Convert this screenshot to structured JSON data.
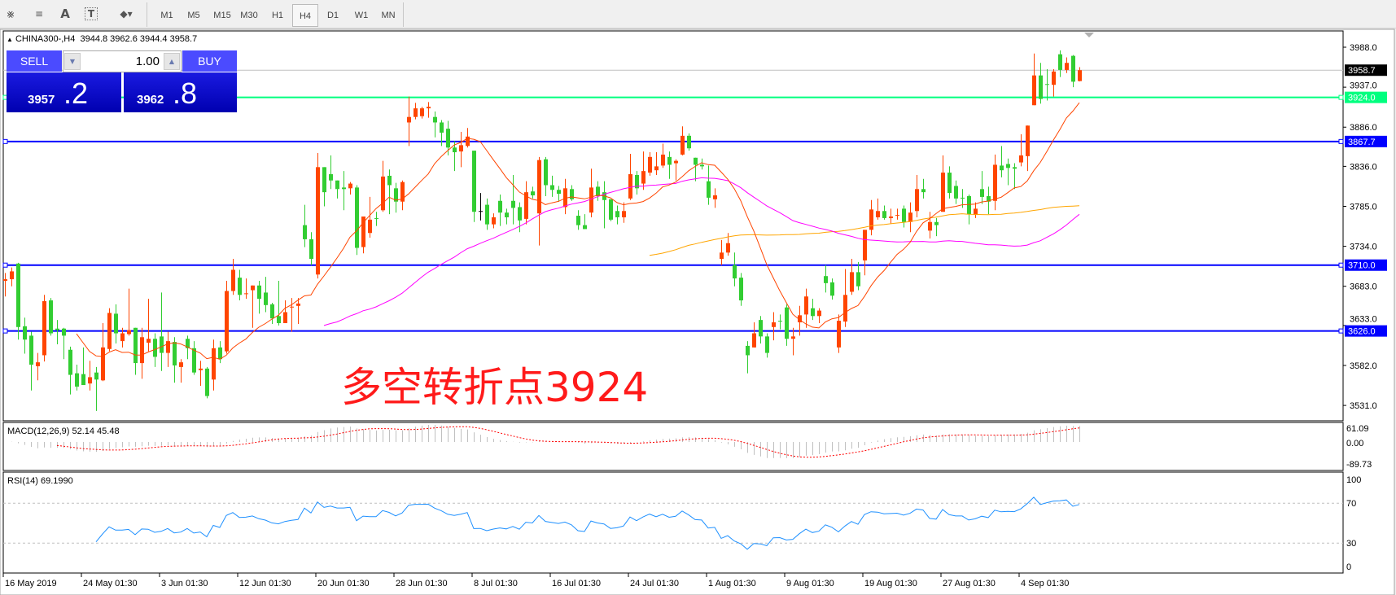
{
  "toolbar": {
    "icons": [
      "elliott-wave-icon",
      "fibonacci-icon",
      "text-icon",
      "text-label-icon",
      "arrows-dropdown-icon"
    ],
    "timeframes": [
      "M1",
      "M5",
      "M15",
      "M30",
      "H1",
      "H4",
      "D1",
      "W1",
      "MN"
    ],
    "selected_timeframe": "H4"
  },
  "chart_header": {
    "symbol": "CHINA300-,H4",
    "ohlc": "3944.8 3962.6 3944.4 3958.7"
  },
  "trade_panel": {
    "sell_label": "SELL",
    "buy_label": "BUY",
    "lot": "1.00",
    "sell_price_main": "3957",
    "sell_price_frac": ".2",
    "buy_price_main": "3962",
    "buy_price_frac": ".8"
  },
  "annotation": "多空转折点3924",
  "colors": {
    "bull": "#ff4500",
    "bear": "#32cd32",
    "ma_fast": "#ff4500",
    "ma_mid": "#ff00ff",
    "ma_slow": "#ffa500",
    "support_resistance": "#0000ff",
    "pivot": "#00ff7f",
    "bid_line": "#c0c0c0",
    "rsi": "#1e90ff",
    "macd_hist": "#c0c0c0",
    "macd_signal": "#ff0000"
  },
  "chart_data": {
    "type": "candlestick",
    "symbol": "CHINA300-",
    "timeframe": "H4",
    "ylim": [
      3520,
      3995
    ],
    "y_ticks": [
      "3988.0",
      "3937.0",
      "3886.0",
      "3836.0",
      "3785.0",
      "3734.0",
      "3683.0",
      "3633.0",
      "3582.0",
      "3531.0"
    ],
    "x_labels": [
      "16 May 2019",
      "24 May 01:30",
      "3 Jun 01:30",
      "12 Jun 01:30",
      "20 Jun 01:30",
      "28 Jun 01:30",
      "8 Jul 01:30",
      "16 Jul 01:30",
      "24 Jul 01:30",
      "1 Aug 01:30",
      "9 Aug 01:30",
      "19 Aug 01:30",
      "27 Aug 01:30",
      "4 Sep 01:30"
    ],
    "x_label_every_bars": 12,
    "bid": {
      "value": 3958.7,
      "label": "3958.7"
    },
    "levels": [
      {
        "value": 3924.0,
        "label": "3924.0",
        "kind": "pivot"
      },
      {
        "value": 3867.7,
        "label": "3867.7",
        "kind": "support_resistance"
      },
      {
        "value": 3710.0,
        "label": "3710.0",
        "kind": "support_resistance"
      },
      {
        "value": 3626.0,
        "label": "3626.0",
        "kind": "support_resistance"
      }
    ],
    "ohlc": [
      [
        3690,
        3700,
        3670,
        3692
      ],
      [
        3692,
        3707,
        3683,
        3702
      ],
      [
        3712,
        3713,
        3615,
        3631
      ],
      [
        3632,
        3643,
        3597,
        3615
      ],
      [
        3620,
        3625,
        3550,
        3583
      ],
      [
        3581,
        3598,
        3563,
        3586
      ],
      [
        3595,
        3672,
        3587,
        3664
      ],
      [
        3665,
        3668,
        3620,
        3623
      ],
      [
        3629,
        3640,
        3609,
        3627
      ],
      [
        3629,
        3630,
        3590,
        3620
      ],
      [
        3602,
        3606,
        3545,
        3570
      ],
      [
        3572,
        3583,
        3550,
        3555
      ],
      [
        3571,
        3605,
        3557,
        3557
      ],
      [
        3559,
        3588,
        3550,
        3567
      ],
      [
        3573,
        3580,
        3524,
        3564
      ],
      [
        3563,
        3636,
        3562,
        3605
      ],
      [
        3603,
        3655,
        3600,
        3649
      ],
      [
        3648,
        3660,
        3610,
        3623
      ],
      [
        3613,
        3630,
        3605,
        3623
      ],
      [
        3622,
        3680,
        3620,
        3627
      ],
      [
        3630,
        3630,
        3570,
        3585
      ],
      [
        3585,
        3630,
        3565,
        3618
      ],
      [
        3611,
        3667,
        3600,
        3616
      ],
      [
        3616,
        3623,
        3580,
        3593
      ],
      [
        3619,
        3675,
        3575,
        3598
      ],
      [
        3598,
        3625,
        3580,
        3613
      ],
      [
        3612,
        3618,
        3560,
        3582
      ],
      [
        3580,
        3590,
        3560,
        3586
      ],
      [
        3616,
        3620,
        3590,
        3604
      ],
      [
        3604,
        3613,
        3570,
        3573
      ],
      [
        3576,
        3588,
        3556,
        3578
      ],
      [
        3578,
        3580,
        3540,
        3543
      ],
      [
        3564,
        3615,
        3550,
        3604
      ],
      [
        3605,
        3613,
        3585,
        3590
      ],
      [
        3600,
        3690,
        3597,
        3677
      ],
      [
        3677,
        3718,
        3672,
        3704
      ],
      [
        3694,
        3704,
        3665,
        3672
      ],
      [
        3673,
        3693,
        3667,
        3674
      ],
      [
        3678,
        3684,
        3630,
        3684
      ],
      [
        3684,
        3690,
        3648,
        3667
      ],
      [
        3675,
        3695,
        3650,
        3659
      ],
      [
        3660,
        3662,
        3635,
        3642
      ],
      [
        3645,
        3690,
        3633,
        3636
      ],
      [
        3636,
        3665,
        3636,
        3650
      ],
      [
        3656,
        3668,
        3625,
        3657
      ],
      [
        3658,
        3668,
        3635,
        3661
      ],
      [
        3761,
        3787,
        3733,
        3743
      ],
      [
        3743,
        3752,
        3710,
        3718
      ],
      [
        3698,
        3853,
        3693,
        3835
      ],
      [
        3835,
        3835,
        3785,
        3803
      ],
      [
        3826,
        3850,
        3807,
        3818
      ],
      [
        3818,
        3818,
        3795,
        3807
      ],
      [
        3809,
        3830,
        3780,
        3807
      ],
      [
        3808,
        3816,
        3800,
        3814
      ],
      [
        3809,
        3812,
        3723,
        3732
      ],
      [
        3733,
        3772,
        3725,
        3772
      ],
      [
        3751,
        3797,
        3745,
        3768
      ],
      [
        3770,
        3778,
        3760,
        3769
      ],
      [
        3780,
        3843,
        3778,
        3823
      ],
      [
        3824,
        3832,
        3775,
        3812
      ],
      [
        3808,
        3815,
        3777,
        3791
      ],
      [
        3791,
        3818,
        3780,
        3816
      ],
      [
        3892,
        3925,
        3862,
        3899
      ],
      [
        3899,
        3917,
        3896,
        3910
      ],
      [
        3900,
        3912,
        3897,
        3910
      ],
      [
        3910,
        3918,
        3898,
        3912
      ],
      [
        3899,
        3906,
        3873,
        3892
      ],
      [
        3892,
        3895,
        3862,
        3879
      ],
      [
        3884,
        3894,
        3850,
        3860
      ],
      [
        3860,
        3868,
        3830,
        3854
      ],
      [
        3855,
        3880,
        3835,
        3863
      ],
      [
        3862,
        3885,
        3860,
        3874
      ],
      [
        3856,
        3856,
        3765,
        3778
      ],
      [
        3779,
        3802,
        3767,
        3779
      ],
      [
        3787,
        3795,
        3755,
        3762
      ],
      [
        3762,
        3776,
        3757,
        3771
      ],
      [
        3792,
        3800,
        3760,
        3777
      ],
      [
        3777,
        3782,
        3762,
        3771
      ],
      [
        3792,
        3825,
        3762,
        3783
      ],
      [
        3784,
        3790,
        3752,
        3767
      ],
      [
        3769,
        3817,
        3762,
        3803
      ],
      [
        3804,
        3810,
        3795,
        3799
      ],
      [
        3776,
        3848,
        3735,
        3844
      ],
      [
        3845,
        3848,
        3798,
        3812
      ],
      [
        3812,
        3824,
        3797,
        3806
      ],
      [
        3806,
        3811,
        3791,
        3801
      ],
      [
        3784,
        3820,
        3775,
        3808
      ],
      [
        3807,
        3812,
        3792,
        3794
      ],
      [
        3773,
        3780,
        3755,
        3761
      ],
      [
        3761,
        3775,
        3756,
        3756
      ],
      [
        3777,
        3833,
        3771,
        3809
      ],
      [
        3810,
        3817,
        3792,
        3798
      ],
      [
        3803,
        3817,
        3757,
        3793
      ],
      [
        3794,
        3794,
        3766,
        3768
      ],
      [
        3779,
        3786,
        3762,
        3771
      ],
      [
        3771,
        3790,
        3764,
        3779
      ],
      [
        3795,
        3852,
        3793,
        3826
      ],
      [
        3825,
        3830,
        3800,
        3808
      ],
      [
        3814,
        3855,
        3806,
        3830
      ],
      [
        3828,
        3854,
        3824,
        3848
      ],
      [
        3831,
        3854,
        3825,
        3836
      ],
      [
        3837,
        3865,
        3834,
        3851
      ],
      [
        3848,
        3855,
        3820,
        3838
      ],
      [
        3840,
        3845,
        3818,
        3843
      ],
      [
        3851,
        3887,
        3850,
        3875
      ],
      [
        3875,
        3878,
        3856,
        3859
      ],
      [
        3847,
        3847,
        3817,
        3838
      ],
      [
        3838,
        3846,
        3832,
        3836
      ],
      [
        3817,
        3837,
        3787,
        3796
      ],
      [
        3794,
        3808,
        3783,
        3799
      ],
      [
        3718,
        3742,
        3710,
        3726
      ],
      [
        3726,
        3751,
        3722,
        3738
      ],
      [
        3710,
        3726,
        3683,
        3693
      ],
      [
        3694,
        3700,
        3658,
        3665
      ],
      [
        3607,
        3613,
        3572,
        3595
      ],
      [
        3605,
        3637,
        3605,
        3623
      ],
      [
        3640,
        3645,
        3610,
        3619
      ],
      [
        3619,
        3623,
        3592,
        3598
      ],
      [
        3631,
        3650,
        3614,
        3637
      ],
      [
        3639,
        3647,
        3628,
        3638
      ],
      [
        3656,
        3660,
        3607,
        3616
      ],
      [
        3616,
        3630,
        3595,
        3619
      ],
      [
        3637,
        3658,
        3620,
        3646
      ],
      [
        3647,
        3680,
        3630,
        3670
      ],
      [
        3655,
        3667,
        3640,
        3645
      ],
      [
        3645,
        3655,
        3636,
        3652
      ],
      [
        3696,
        3710,
        3675,
        3687
      ],
      [
        3688,
        3693,
        3666,
        3671
      ],
      [
        3605,
        3647,
        3598,
        3639
      ],
      [
        3638,
        3705,
        3631,
        3672
      ],
      [
        3676,
        3718,
        3672,
        3701
      ],
      [
        3701,
        3714,
        3678,
        3683
      ],
      [
        3716,
        3755,
        3697,
        3755
      ],
      [
        3755,
        3793,
        3748,
        3781
      ],
      [
        3771,
        3795,
        3768,
        3779
      ],
      [
        3779,
        3786,
        3768,
        3770
      ],
      [
        3770,
        3782,
        3763,
        3772
      ],
      [
        3773,
        3782,
        3768,
        3774
      ],
      [
        3782,
        3786,
        3758,
        3765
      ],
      [
        3765,
        3790,
        3752,
        3777
      ],
      [
        3779,
        3825,
        3771,
        3807
      ],
      [
        3807,
        3820,
        3795,
        3803
      ],
      [
        3754,
        3778,
        3744,
        3765
      ],
      [
        3765,
        3770,
        3747,
        3761
      ],
      [
        3778,
        3850,
        3778,
        3828
      ],
      [
        3828,
        3836,
        3795,
        3802
      ],
      [
        3811,
        3818,
        3788,
        3795
      ],
      [
        3796,
        3807,
        3783,
        3795
      ],
      [
        3798,
        3800,
        3762,
        3775
      ],
      [
        3774,
        3790,
        3770,
        3782
      ],
      [
        3807,
        3830,
        3788,
        3797
      ],
      [
        3798,
        3810,
        3775,
        3791
      ],
      [
        3792,
        3851,
        3780,
        3838
      ],
      [
        3837,
        3862,
        3822,
        3831
      ],
      [
        3839,
        3846,
        3812,
        3834
      ],
      [
        3835,
        3840,
        3807,
        3833
      ],
      [
        3841,
        3877,
        3836,
        3850
      ],
      [
        3849,
        3888,
        3830,
        3888
      ],
      [
        3914,
        3980,
        3914,
        3952
      ],
      [
        3952,
        3968,
        3916,
        3922
      ],
      [
        3941,
        3960,
        3920,
        3940
      ],
      [
        3940,
        3960,
        3925,
        3957
      ],
      [
        3979,
        3984,
        3950,
        3959
      ],
      [
        3959,
        3975,
        3955,
        3968
      ],
      [
        3977,
        3978,
        3937,
        3944
      ],
      [
        3944.8,
        3962.6,
        3944.4,
        3958.7
      ]
    ],
    "macd": {
      "label": "MACD(12,26,9) 52.14 45.48",
      "ylim": [
        -89.73,
        61.09
      ],
      "y_ticks": [
        "61.09",
        "0.00",
        "-89.73"
      ]
    },
    "rsi": {
      "label": "RSI(14) 69.1990",
      "ylim": [
        0,
        100
      ],
      "levels": [
        70,
        30
      ],
      "y_ticks": [
        "100",
        "70",
        "30",
        "0"
      ]
    }
  }
}
